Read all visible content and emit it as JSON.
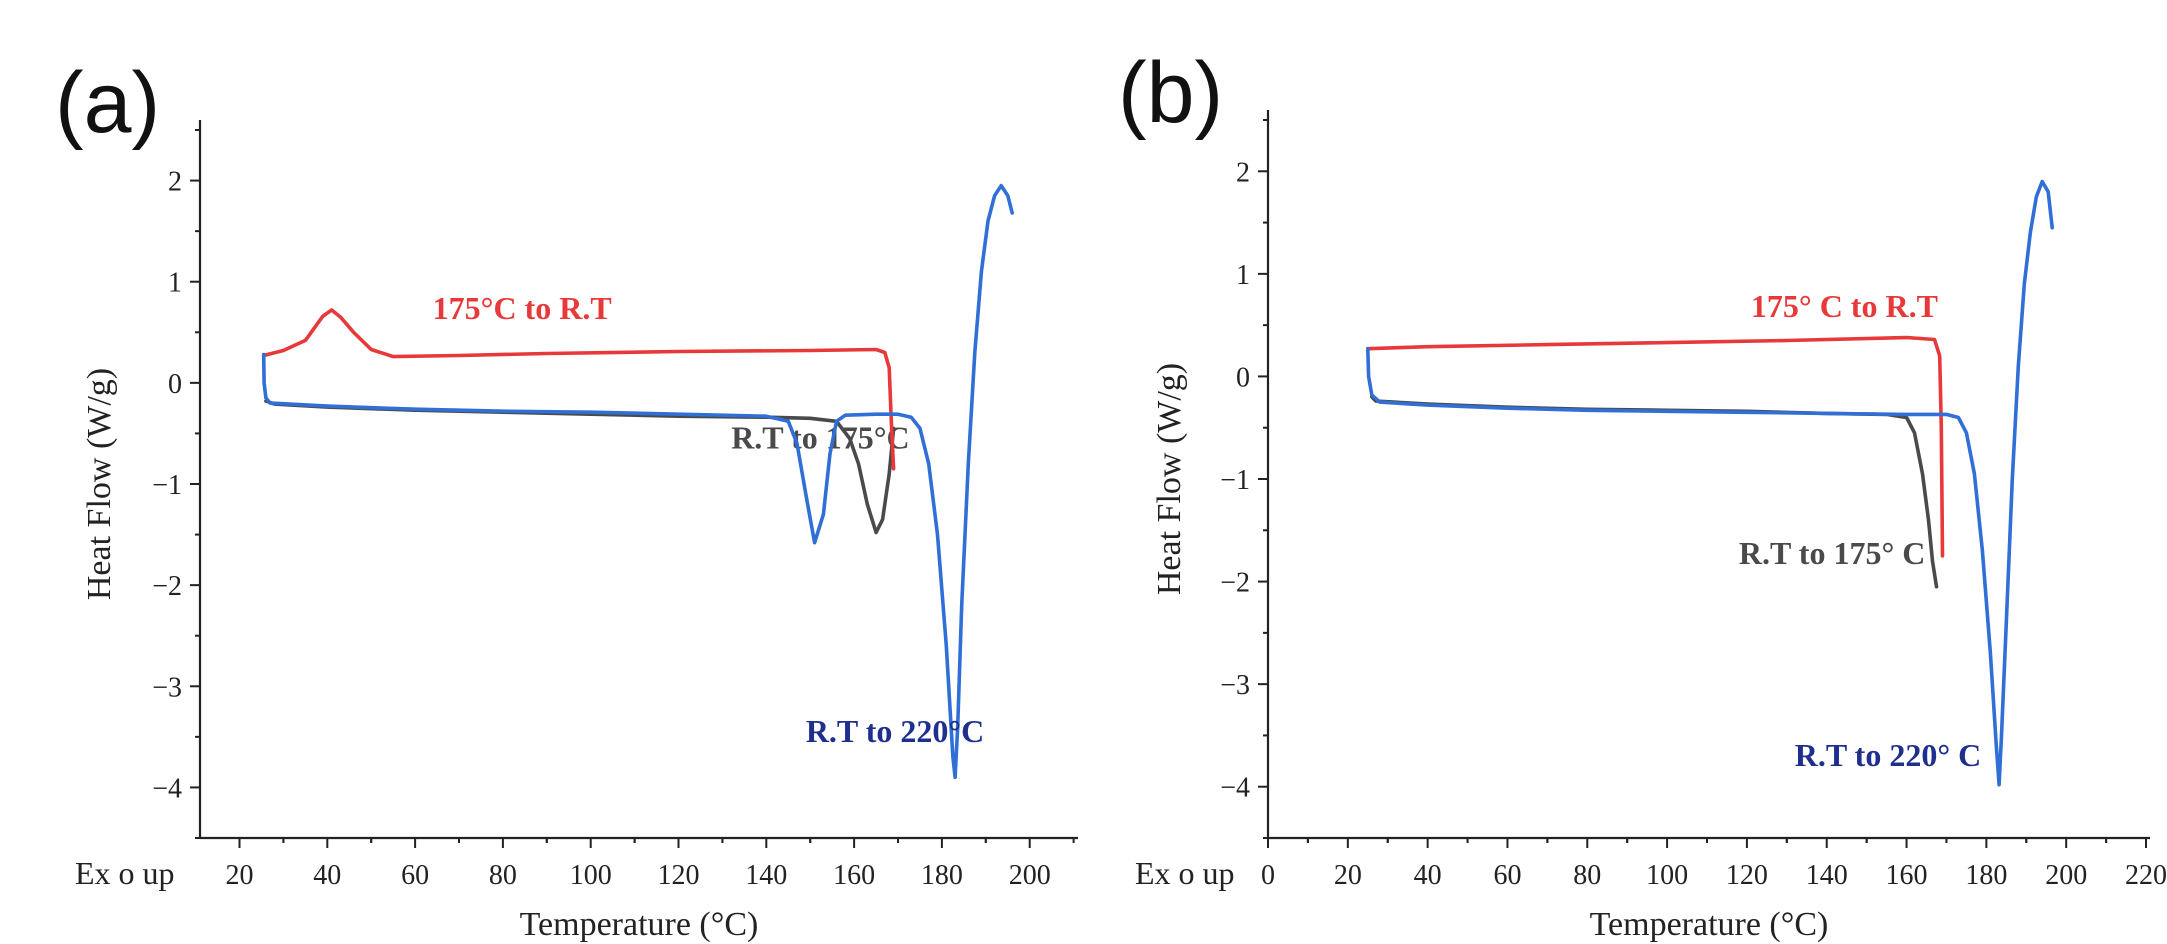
{
  "chart_data": [
    {
      "panel": "(a)",
      "type": "line",
      "xlabel": "Temperature (°C)",
      "ylabel": "Heat Flow (W/g)",
      "corner_label": "Ex o up",
      "xlim": [
        11,
        211
      ],
      "ylim": [
        -4.5,
        2.5
      ],
      "xticks": [
        20,
        40,
        60,
        80,
        100,
        120,
        140,
        160,
        180,
        200
      ],
      "yticks": [
        -4,
        -3,
        -2,
        -1,
        0,
        1,
        2
      ],
      "grid": false,
      "series": [
        {
          "name": "R.T to 175°C",
          "color": "#4a4a4a",
          "label_at": [
            132,
            -0.65
          ],
          "points": [
            [
              26,
              -0.18
            ],
            [
              28,
              -0.21
            ],
            [
              40,
              -0.24
            ],
            [
              60,
              -0.27
            ],
            [
              80,
              -0.29
            ],
            [
              100,
              -0.31
            ],
            [
              120,
              -0.33
            ],
            [
              140,
              -0.34
            ],
            [
              150,
              -0.35
            ],
            [
              156,
              -0.38
            ],
            [
              159,
              -0.55
            ],
            [
              161,
              -0.8
            ],
            [
              163,
              -1.2
            ],
            [
              165,
              -1.48
            ],
            [
              166.5,
              -1.35
            ],
            [
              168,
              -0.9
            ],
            [
              169,
              -0.45
            ]
          ]
        },
        {
          "name": "175°C to R.T",
          "color": "#e8393a",
          "label_at": [
            64,
            0.63
          ],
          "points": [
            [
              169,
              -0.85
            ],
            [
              168.5,
              -0.4
            ],
            [
              168,
              0.15
            ],
            [
              167,
              0.3
            ],
            [
              165,
              0.33
            ],
            [
              150,
              0.32
            ],
            [
              120,
              0.31
            ],
            [
              90,
              0.29
            ],
            [
              70,
              0.27
            ],
            [
              55,
              0.26
            ],
            [
              50,
              0.33
            ],
            [
              46,
              0.5
            ],
            [
              43,
              0.65
            ],
            [
              41,
              0.72
            ],
            [
              39,
              0.66
            ],
            [
              35,
              0.42
            ],
            [
              30,
              0.32
            ],
            [
              25.5,
              0.27
            ]
          ]
        },
        {
          "name": "R.T to 220°C",
          "color": "#2f6fd6",
          "label_at": [
            149,
            -3.55
          ],
          "points": [
            [
              25.5,
              0.28
            ],
            [
              25.6,
              0
            ],
            [
              26,
              -0.15
            ],
            [
              27,
              -0.2
            ],
            [
              40,
              -0.23
            ],
            [
              60,
              -0.26
            ],
            [
              80,
              -0.28
            ],
            [
              100,
              -0.29
            ],
            [
              120,
              -0.31
            ],
            [
              140,
              -0.33
            ],
            [
              145,
              -0.38
            ],
            [
              147,
              -0.6
            ],
            [
              149,
              -1.1
            ],
            [
              151,
              -1.58
            ],
            [
              153,
              -1.3
            ],
            [
              154.5,
              -0.7
            ],
            [
              156,
              -0.38
            ],
            [
              158,
              -0.32
            ],
            [
              165,
              -0.31
            ],
            [
              170,
              -0.31
            ],
            [
              173,
              -0.34
            ],
            [
              175,
              -0.45
            ],
            [
              177,
              -0.8
            ],
            [
              179,
              -1.5
            ],
            [
              181,
              -2.6
            ],
            [
              182.5,
              -3.7
            ],
            [
              183,
              -3.9
            ],
            [
              183.6,
              -3.4
            ],
            [
              184.5,
              -2.2
            ],
            [
              186,
              -0.8
            ],
            [
              187.5,
              0.3
            ],
            [
              189,
              1.1
            ],
            [
              190.5,
              1.6
            ],
            [
              192,
              1.85
            ],
            [
              193.5,
              1.95
            ],
            [
              195,
              1.85
            ],
            [
              196,
              1.68
            ]
          ]
        }
      ]
    },
    {
      "panel": "(b)",
      "type": "line",
      "xlabel": "Temperature (°C)",
      "ylabel": "Heat Flow (W/g)",
      "corner_label": "Ex o up",
      "xlim": [
        0,
        221
      ],
      "ylim": [
        -4.5,
        2.5
      ],
      "xticks": [
        0,
        20,
        40,
        60,
        80,
        100,
        120,
        140,
        160,
        180,
        200,
        220
      ],
      "yticks": [
        -4,
        -3,
        -2,
        -1,
        0,
        1,
        2
      ],
      "grid": false,
      "series": [
        {
          "name": "175° C to R.T",
          "color": "#e8393a",
          "label_at": [
            121,
            0.58
          ],
          "points": [
            [
              169,
              -1.75
            ],
            [
              168.7,
              -0.5
            ],
            [
              168.3,
              0.2
            ],
            [
              167,
              0.36
            ],
            [
              160,
              0.38
            ],
            [
              130,
              0.35
            ],
            [
              100,
              0.33
            ],
            [
              70,
              0.31
            ],
            [
              40,
              0.29
            ],
            [
              25,
              0.27
            ]
          ]
        },
        {
          "name": "R.T to 175° C",
          "color": "#4a4a4a",
          "label_at": [
            118,
            -1.83
          ],
          "points": [
            [
              26,
              -0.2
            ],
            [
              27,
              -0.24
            ],
            [
              40,
              -0.27
            ],
            [
              60,
              -0.3
            ],
            [
              80,
              -0.32
            ],
            [
              100,
              -0.33
            ],
            [
              120,
              -0.34
            ],
            [
              140,
              -0.36
            ],
            [
              155,
              -0.37
            ],
            [
              160,
              -0.4
            ],
            [
              162,
              -0.55
            ],
            [
              164,
              -0.95
            ],
            [
              165.5,
              -1.4
            ],
            [
              166.5,
              -1.8
            ],
            [
              167.5,
              -2.05
            ]
          ]
        },
        {
          "name": "R.T to 220° C",
          "color": "#2f6fd6",
          "label_at": [
            132,
            -3.8
          ],
          "points": [
            [
              25,
              0.27
            ],
            [
              25.2,
              0
            ],
            [
              26,
              -0.18
            ],
            [
              28,
              -0.25
            ],
            [
              40,
              -0.28
            ],
            [
              60,
              -0.31
            ],
            [
              80,
              -0.33
            ],
            [
              100,
              -0.34
            ],
            [
              120,
              -0.35
            ],
            [
              140,
              -0.36
            ],
            [
              160,
              -0.37
            ],
            [
              170,
              -0.37
            ],
            [
              173,
              -0.4
            ],
            [
              175,
              -0.55
            ],
            [
              177,
              -0.95
            ],
            [
              179,
              -1.7
            ],
            [
              181,
              -2.7
            ],
            [
              182.5,
              -3.6
            ],
            [
              183.2,
              -3.98
            ],
            [
              183.8,
              -3.5
            ],
            [
              185,
              -2.4
            ],
            [
              186.5,
              -1
            ],
            [
              188,
              0.1
            ],
            [
              189.5,
              0.9
            ],
            [
              191,
              1.4
            ],
            [
              192.5,
              1.75
            ],
            [
              194,
              1.9
            ],
            [
              195.5,
              1.8
            ],
            [
              196.5,
              1.45
            ]
          ]
        }
      ]
    }
  ]
}
